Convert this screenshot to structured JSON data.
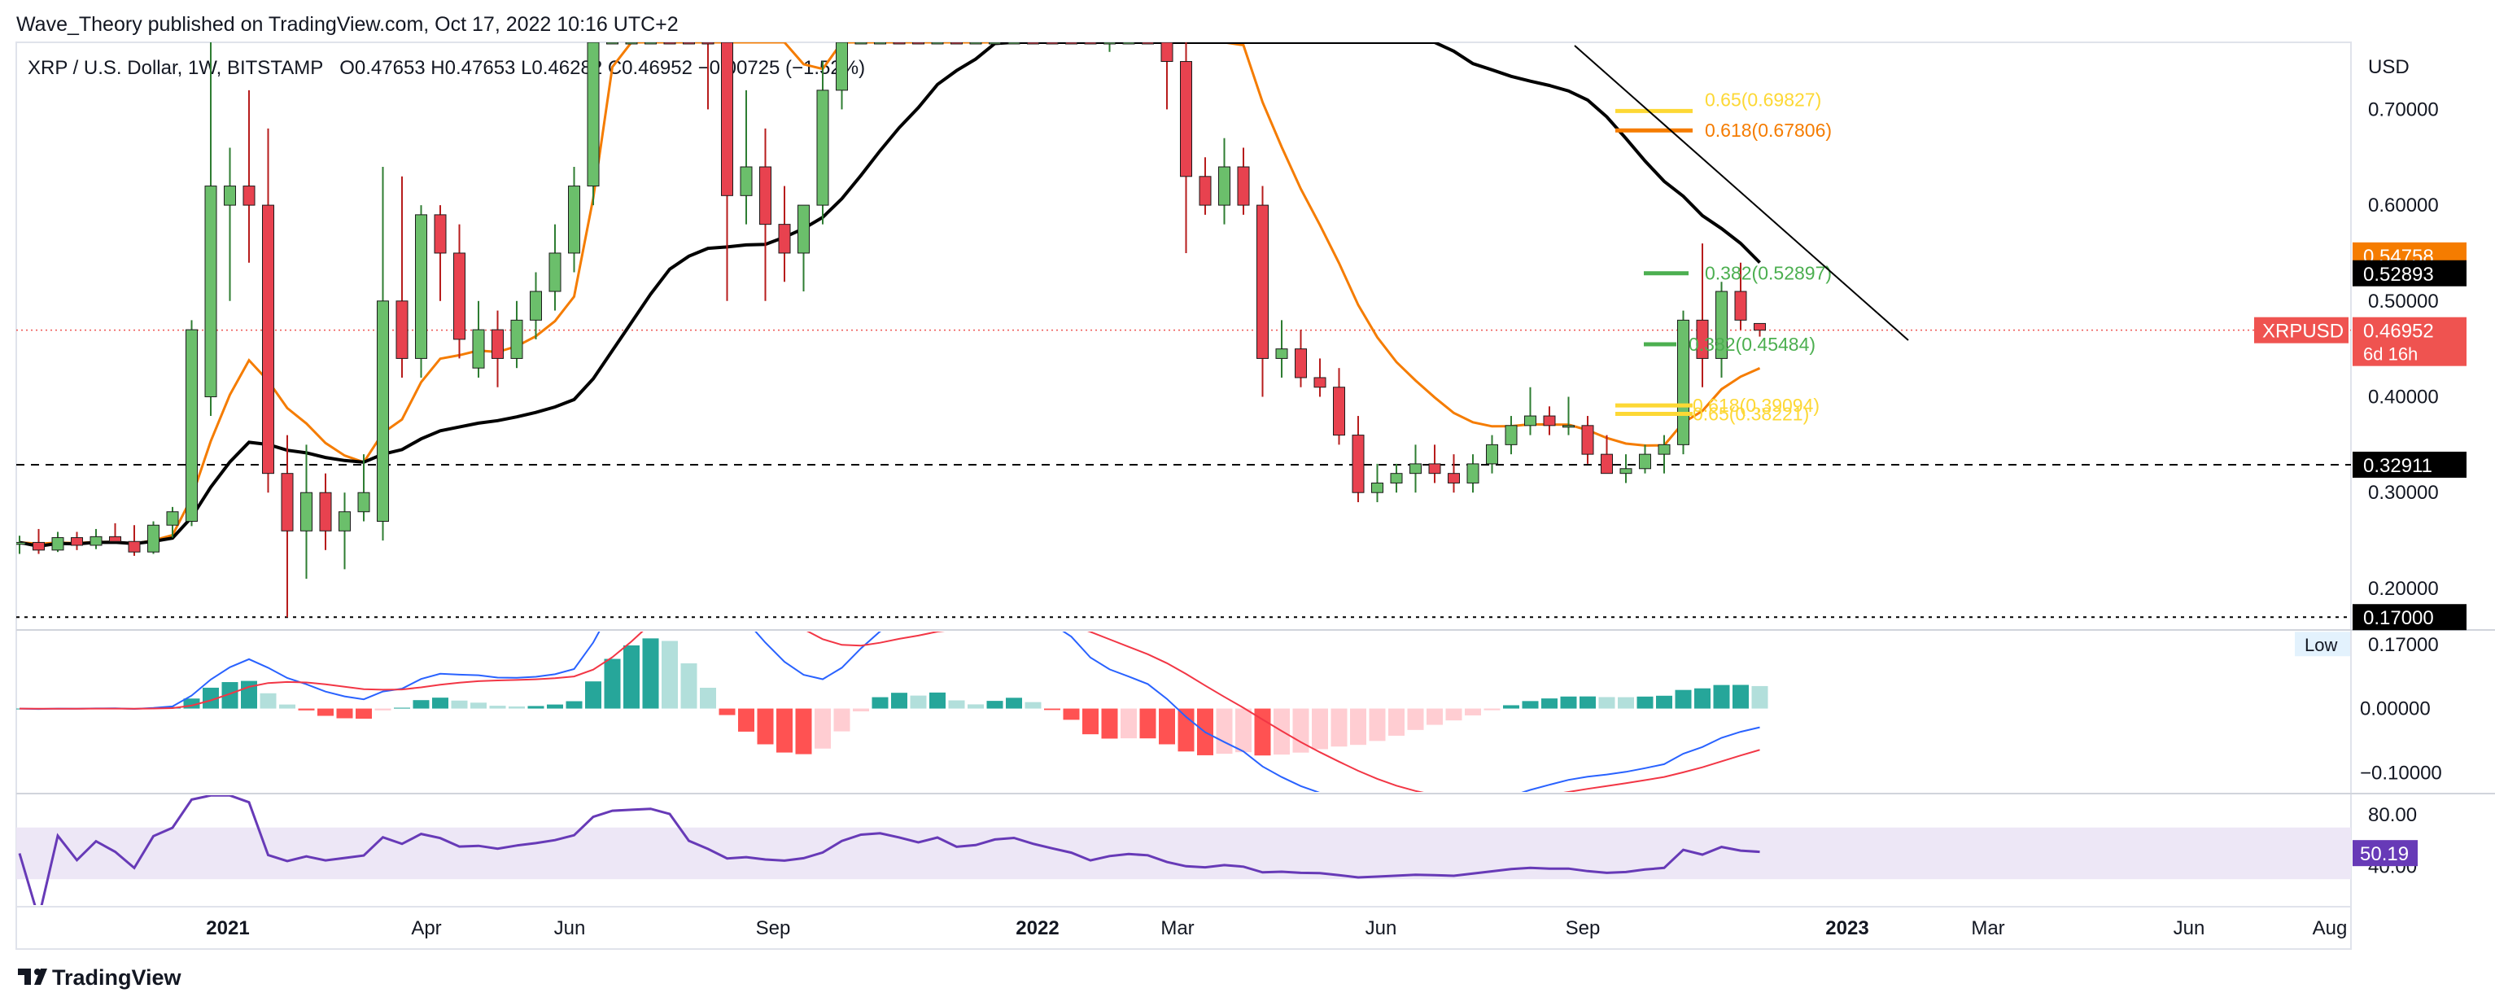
{
  "header": {
    "published": "Wave_Theory published on TradingView.com, Oct 17, 2022 10:16 UTC+2",
    "symbol_line": "XRP / U.S. Dollar, 1W, BITSTAMP",
    "ohlc": "O0.47653 H0.47653 L0.46282 C0.46952 −0.00725 (−1.52%)"
  },
  "footer": {
    "brand": "TradingView"
  },
  "colors": {
    "up": "#26a69a",
    "down": "#ef5350",
    "candle_up": "#6bbf6b",
    "candle_down": "#e8424f",
    "ema_orange": "#f57c00",
    "ma_black": "#000000",
    "fib_green": "#4caf50",
    "fib_yellow": "#fdd835",
    "macd_line": "#2962ff",
    "signal_line": "#f23645",
    "rsi": "#673ab7",
    "rsi_band": "#ede7f6"
  },
  "chart_data": {
    "type": "candlestick",
    "symbol": "XRPUSD",
    "interval": "1W",
    "exchange": "BITSTAMP",
    "currency_label": "USD",
    "price_axis": {
      "ticks": [
        "0.70000",
        "0.60000",
        "0.50000",
        "0.40000",
        "0.30000",
        "0.20000"
      ],
      "ylim": [
        0.16,
        0.77
      ]
    },
    "time_axis": {
      "labels": [
        "2021",
        "Apr",
        "Jun",
        "Sep",
        "2022",
        "Mar",
        "Jun",
        "Sep",
        "2023",
        "Mar",
        "Jun",
        "Aug"
      ],
      "bold": [
        "2021",
        "2022",
        "2023"
      ]
    },
    "ohlc_weekly": [
      {
        "o": 0.246,
        "h": 0.255,
        "l": 0.236,
        "c": 0.248
      },
      {
        "o": 0.248,
        "h": 0.262,
        "l": 0.236,
        "c": 0.24
      },
      {
        "o": 0.24,
        "h": 0.259,
        "l": 0.238,
        "c": 0.253
      },
      {
        "o": 0.253,
        "h": 0.259,
        "l": 0.24,
        "c": 0.245
      },
      {
        "o": 0.245,
        "h": 0.262,
        "l": 0.241,
        "c": 0.254
      },
      {
        "o": 0.254,
        "h": 0.268,
        "l": 0.25,
        "c": 0.249
      },
      {
        "o": 0.249,
        "h": 0.266,
        "l": 0.234,
        "c": 0.238
      },
      {
        "o": 0.238,
        "h": 0.27,
        "l": 0.236,
        "c": 0.266
      },
      {
        "o": 0.266,
        "h": 0.285,
        "l": 0.253,
        "c": 0.28
      },
      {
        "o": 0.27,
        "h": 0.48,
        "l": 0.265,
        "c": 0.47
      },
      {
        "o": 0.4,
        "h": 0.78,
        "l": 0.38,
        "c": 0.62
      },
      {
        "o": 0.6,
        "h": 0.66,
        "l": 0.5,
        "c": 0.62
      },
      {
        "o": 0.62,
        "h": 0.72,
        "l": 0.54,
        "c": 0.6
      },
      {
        "o": 0.6,
        "h": 0.68,
        "l": 0.3,
        "c": 0.32
      },
      {
        "o": 0.32,
        "h": 0.36,
        "l": 0.17,
        "c": 0.26
      },
      {
        "o": 0.26,
        "h": 0.35,
        "l": 0.21,
        "c": 0.3
      },
      {
        "o": 0.3,
        "h": 0.32,
        "l": 0.24,
        "c": 0.26
      },
      {
        "o": 0.26,
        "h": 0.3,
        "l": 0.22,
        "c": 0.28
      },
      {
        "o": 0.28,
        "h": 0.34,
        "l": 0.27,
        "c": 0.3
      },
      {
        "o": 0.27,
        "h": 0.64,
        "l": 0.25,
        "c": 0.5
      },
      {
        "o": 0.5,
        "h": 0.63,
        "l": 0.42,
        "c": 0.44
      },
      {
        "o": 0.44,
        "h": 0.6,
        "l": 0.42,
        "c": 0.59
      },
      {
        "o": 0.59,
        "h": 0.6,
        "l": 0.5,
        "c": 0.55
      },
      {
        "o": 0.55,
        "h": 0.58,
        "l": 0.44,
        "c": 0.46
      },
      {
        "o": 0.43,
        "h": 0.5,
        "l": 0.42,
        "c": 0.47
      },
      {
        "o": 0.47,
        "h": 0.49,
        "l": 0.41,
        "c": 0.44
      },
      {
        "o": 0.44,
        "h": 0.5,
        "l": 0.43,
        "c": 0.48
      },
      {
        "o": 0.48,
        "h": 0.53,
        "l": 0.46,
        "c": 0.51
      },
      {
        "o": 0.51,
        "h": 0.58,
        "l": 0.49,
        "c": 0.55
      },
      {
        "o": 0.55,
        "h": 0.64,
        "l": 0.53,
        "c": 0.62
      },
      {
        "o": 0.62,
        "h": 1.4,
        "l": 0.6,
        "c": 1.07
      },
      {
        "o": 1.07,
        "h": 1.6,
        "l": 0.95,
        "c": 1.36
      },
      {
        "o": 1.36,
        "h": 1.7,
        "l": 1.16,
        "c": 1.42
      },
      {
        "o": 1.42,
        "h": 1.62,
        "l": 1.34,
        "c": 1.48
      },
      {
        "o": 1.48,
        "h": 1.56,
        "l": 1.35,
        "c": 1.42
      },
      {
        "o": 1.42,
        "h": 1.52,
        "l": 0.88,
        "c": 1.02
      },
      {
        "o": 1.02,
        "h": 1.2,
        "l": 0.7,
        "c": 0.85
      },
      {
        "o": 0.85,
        "h": 0.95,
        "l": 0.5,
        "c": 0.61
      },
      {
        "o": 0.61,
        "h": 0.72,
        "l": 0.58,
        "c": 0.64
      },
      {
        "o": 0.64,
        "h": 0.68,
        "l": 0.5,
        "c": 0.58
      },
      {
        "o": 0.58,
        "h": 0.62,
        "l": 0.52,
        "c": 0.55
      },
      {
        "o": 0.55,
        "h": 0.6,
        "l": 0.51,
        "c": 0.6
      },
      {
        "o": 0.6,
        "h": 0.75,
        "l": 0.58,
        "c": 0.72
      },
      {
        "o": 0.72,
        "h": 1.05,
        "l": 0.7,
        "c": 1.02
      },
      {
        "o": 1.02,
        "h": 1.3,
        "l": 1.0,
        "c": 1.23
      },
      {
        "o": 1.23,
        "h": 1.41,
        "l": 1.18,
        "c": 1.28
      },
      {
        "o": 1.28,
        "h": 1.35,
        "l": 1.1,
        "c": 1.2
      },
      {
        "o": 1.2,
        "h": 1.25,
        "l": 1.0,
        "c": 1.1
      },
      {
        "o": 1.1,
        "h": 1.3,
        "l": 1.05,
        "c": 1.25
      },
      {
        "o": 1.25,
        "h": 1.3,
        "l": 1.0,
        "c": 1.05
      },
      {
        "o": 1.05,
        "h": 1.2,
        "l": 1.0,
        "c": 1.1
      },
      {
        "o": 1.1,
        "h": 1.35,
        "l": 1.05,
        "c": 1.27
      },
      {
        "o": 1.27,
        "h": 1.42,
        "l": 1.2,
        "c": 1.32
      },
      {
        "o": 1.32,
        "h": 1.4,
        "l": 1.15,
        "c": 1.2
      },
      {
        "o": 1.2,
        "h": 1.25,
        "l": 1.05,
        "c": 1.1
      },
      {
        "o": 1.1,
        "h": 1.2,
        "l": 0.95,
        "c": 1.0
      },
      {
        "o": 1.0,
        "h": 1.05,
        "l": 0.77,
        "c": 0.8
      },
      {
        "o": 0.8,
        "h": 0.95,
        "l": 0.76,
        "c": 0.9
      },
      {
        "o": 0.9,
        "h": 1.0,
        "l": 0.85,
        "c": 0.95
      },
      {
        "o": 0.95,
        "h": 1.0,
        "l": 0.85,
        "c": 0.92
      },
      {
        "o": 0.92,
        "h": 0.95,
        "l": 0.7,
        "c": 0.75
      },
      {
        "o": 0.75,
        "h": 0.83,
        "l": 0.55,
        "c": 0.63
      },
      {
        "o": 0.63,
        "h": 0.65,
        "l": 0.59,
        "c": 0.6
      },
      {
        "o": 0.6,
        "h": 0.67,
        "l": 0.58,
        "c": 0.64
      },
      {
        "o": 0.64,
        "h": 0.66,
        "l": 0.59,
        "c": 0.6
      },
      {
        "o": 0.6,
        "h": 0.62,
        "l": 0.4,
        "c": 0.44
      },
      {
        "o": 0.44,
        "h": 0.48,
        "l": 0.42,
        "c": 0.45
      },
      {
        "o": 0.45,
        "h": 0.47,
        "l": 0.41,
        "c": 0.42
      },
      {
        "o": 0.42,
        "h": 0.44,
        "l": 0.4,
        "c": 0.41
      },
      {
        "o": 0.41,
        "h": 0.43,
        "l": 0.35,
        "c": 0.36
      },
      {
        "o": 0.36,
        "h": 0.38,
        "l": 0.29,
        "c": 0.3
      },
      {
        "o": 0.3,
        "h": 0.33,
        "l": 0.29,
        "c": 0.31
      },
      {
        "o": 0.31,
        "h": 0.33,
        "l": 0.3,
        "c": 0.32
      },
      {
        "o": 0.32,
        "h": 0.35,
        "l": 0.3,
        "c": 0.33
      },
      {
        "o": 0.33,
        "h": 0.35,
        "l": 0.31,
        "c": 0.32
      },
      {
        "o": 0.32,
        "h": 0.34,
        "l": 0.3,
        "c": 0.31
      },
      {
        "o": 0.31,
        "h": 0.34,
        "l": 0.3,
        "c": 0.33
      },
      {
        "o": 0.33,
        "h": 0.36,
        "l": 0.32,
        "c": 0.35
      },
      {
        "o": 0.35,
        "h": 0.38,
        "l": 0.34,
        "c": 0.37
      },
      {
        "o": 0.37,
        "h": 0.41,
        "l": 0.36,
        "c": 0.38
      },
      {
        "o": 0.38,
        "h": 0.39,
        "l": 0.36,
        "c": 0.37
      },
      {
        "o": 0.37,
        "h": 0.4,
        "l": 0.36,
        "c": 0.37
      },
      {
        "o": 0.37,
        "h": 0.38,
        "l": 0.33,
        "c": 0.34
      },
      {
        "o": 0.34,
        "h": 0.36,
        "l": 0.32,
        "c": 0.32
      },
      {
        "o": 0.32,
        "h": 0.34,
        "l": 0.31,
        "c": 0.325
      },
      {
        "o": 0.325,
        "h": 0.35,
        "l": 0.32,
        "c": 0.34
      },
      {
        "o": 0.34,
        "h": 0.36,
        "l": 0.32,
        "c": 0.35
      },
      {
        "o": 0.35,
        "h": 0.49,
        "l": 0.34,
        "c": 0.48
      },
      {
        "o": 0.48,
        "h": 0.56,
        "l": 0.41,
        "c": 0.44
      },
      {
        "o": 0.44,
        "h": 0.52,
        "l": 0.42,
        "c": 0.51
      },
      {
        "o": 0.51,
        "h": 0.54,
        "l": 0.47,
        "c": 0.48
      },
      {
        "o": 0.47653,
        "h": 0.47653,
        "l": 0.46282,
        "c": 0.46952
      }
    ],
    "ema_orange_value": "0.54758",
    "ma_black_value": "0.52893",
    "current_price": "0.46952",
    "current_label": "XRPUSD",
    "countdown": "6d 16h",
    "support_level": "0.32911",
    "low_level": "0.17000",
    "low_label": "Low",
    "trendline": {
      "from_price": 0.79,
      "to_price": 0.47
    },
    "fib_levels": [
      {
        "label": "0.65(0.69827)",
        "value": 0.69827,
        "color": "#fdd835"
      },
      {
        "label": "0.618(0.67806)",
        "value": 0.67806,
        "color": "#f57c00"
      },
      {
        "label": "0.382(0.52897)",
        "value": 0.52897,
        "color": "#4caf50"
      },
      {
        "label": "0.382(0.45484)",
        "value": 0.45484,
        "color": "#4caf50"
      },
      {
        "label": "0.618(0.39094)",
        "value": 0.39094,
        "color": "#fdd835"
      },
      {
        "label": "0.65(0.38221)",
        "value": 0.38221,
        "color": "#fdd835"
      }
    ],
    "macd": {
      "ticks": [
        "0.00000",
        "−0.10000"
      ],
      "ylim": [
        -0.13,
        0.12
      ]
    },
    "rsi": {
      "ticks": [
        "80.00",
        "40.00"
      ],
      "value": "50.19",
      "ylim": [
        10,
        95
      ],
      "band": [
        30,
        70
      ]
    }
  }
}
